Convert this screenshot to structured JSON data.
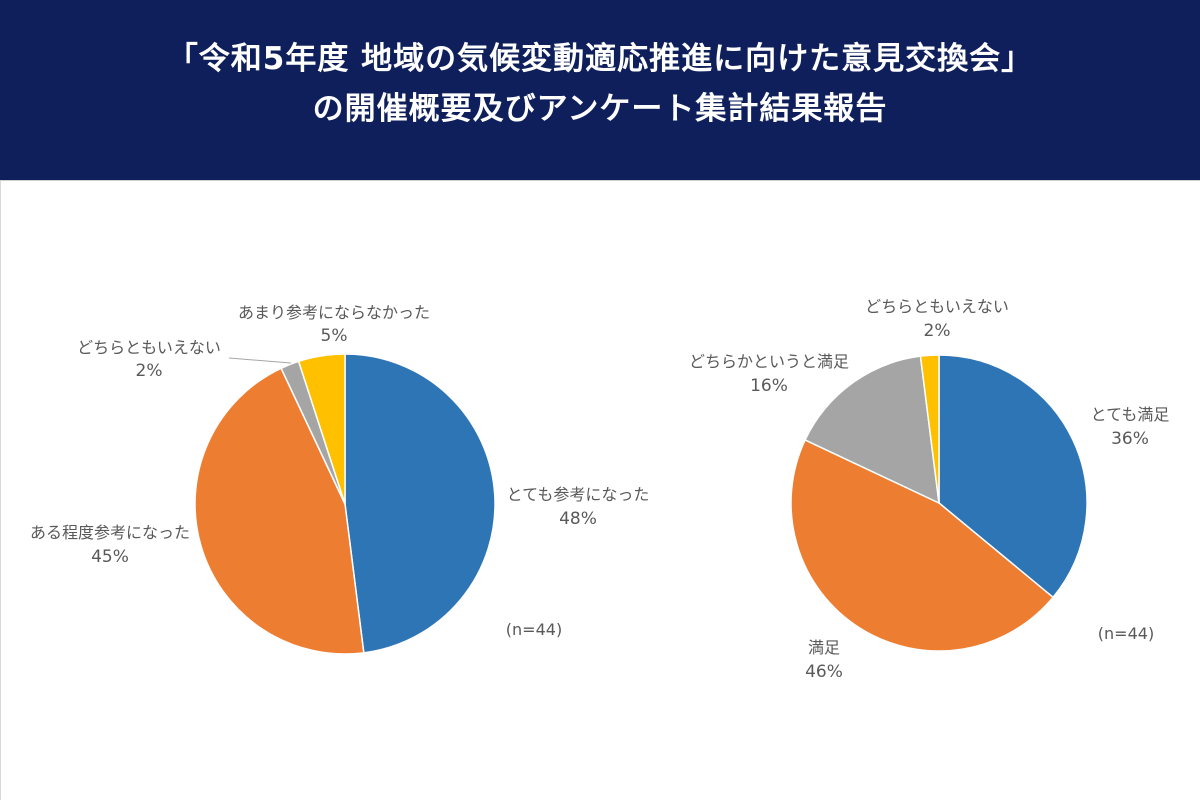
{
  "header": {
    "title_line1": "「令和5年度 地域の気候変動適応推進に向けた意見交換会」",
    "title_line2": "の開催概要及びアンケート集計結果報告"
  },
  "colors": {
    "header_bg": "#0e1f5b",
    "blue": "#2e75b6",
    "orange": "#ed7d31",
    "gray": "#a5a5a5",
    "yellow": "#ffc000"
  },
  "chart_data": [
    {
      "type": "pie",
      "note": "(n=44)",
      "slices": [
        {
          "label": "とても参考になった",
          "value": 48,
          "value_label": "48%",
          "color": "#2e75b6"
        },
        {
          "label": "ある程度参考になった",
          "value": 45,
          "value_label": "45%",
          "color": "#ed7d31"
        },
        {
          "label": "どちらともいえない",
          "value": 2,
          "value_label": "2%",
          "color": "#a5a5a5"
        },
        {
          "label": "あまり参考にならなかった",
          "value": 5,
          "value_label": "5%",
          "color": "#ffc000"
        }
      ]
    },
    {
      "type": "pie",
      "note": "(n=44)",
      "slices": [
        {
          "label": "とても満足",
          "value": 36,
          "value_label": "36%",
          "color": "#2e75b6"
        },
        {
          "label": "満足",
          "value": 46,
          "value_label": "46%",
          "color": "#ed7d31"
        },
        {
          "label": "どちらかというと満足",
          "value": 16,
          "value_label": "16%",
          "color": "#a5a5a5"
        },
        {
          "label": "どちらともいえない",
          "value": 2,
          "value_label": "2%",
          "color": "#ffc000"
        }
      ]
    }
  ]
}
